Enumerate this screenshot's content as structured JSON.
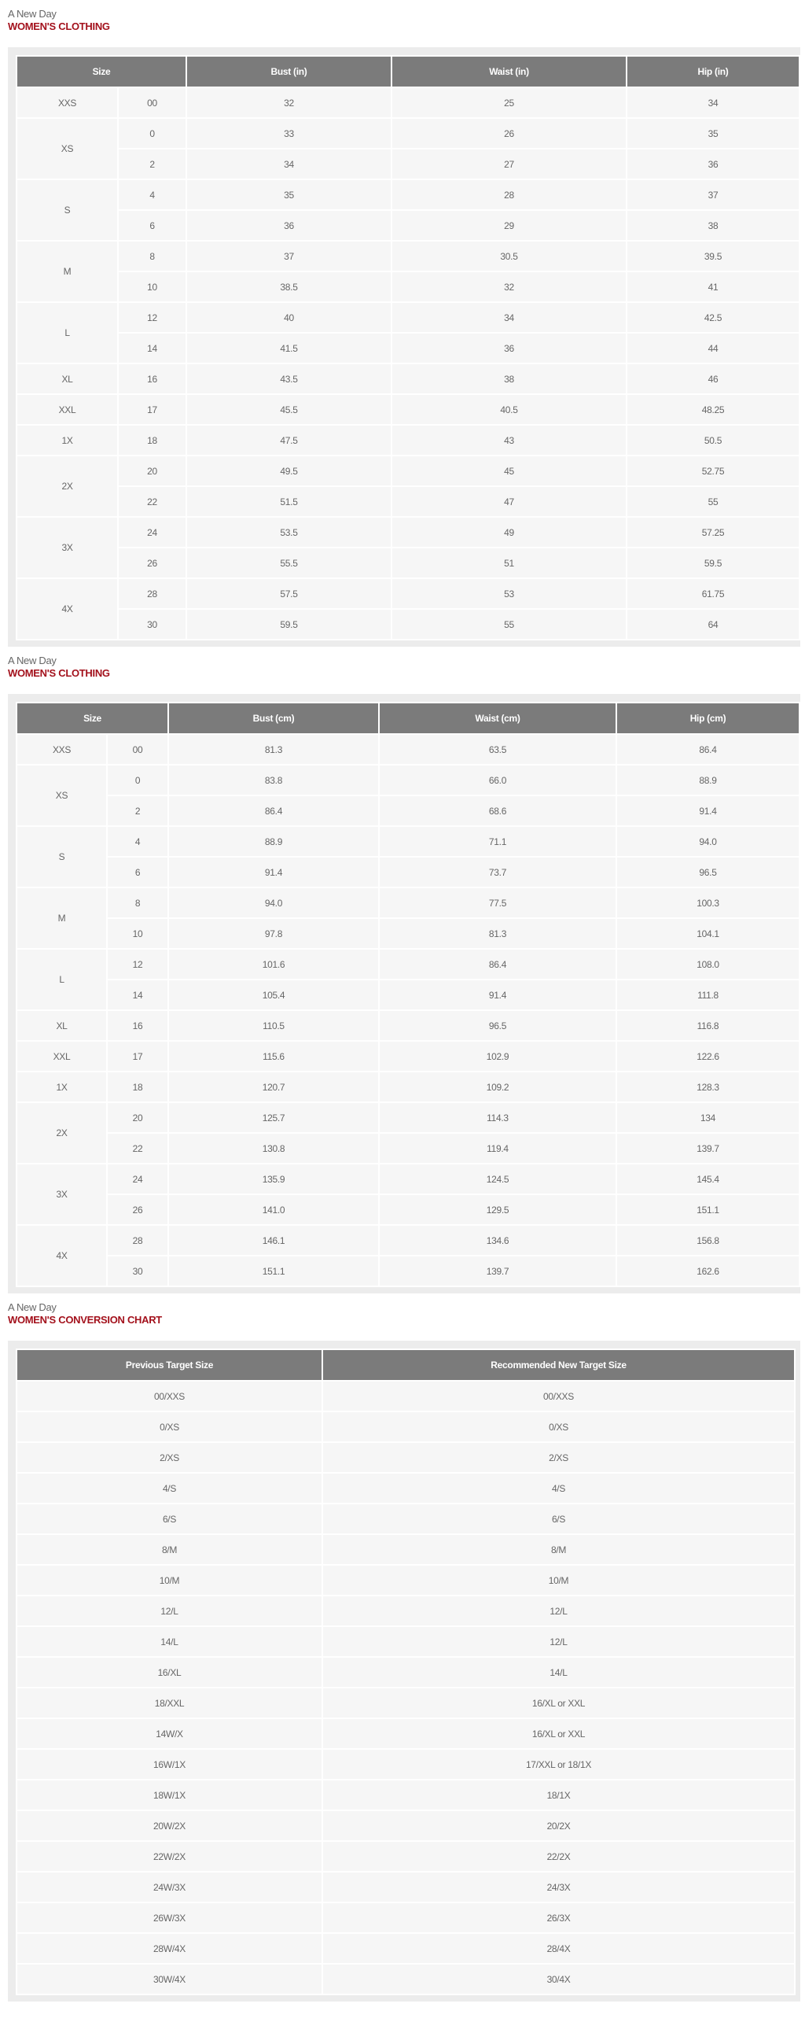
{
  "sections": [
    {
      "brand": "A New Day",
      "heading": "WOMEN'S CLOTHING",
      "headers": [
        "Size",
        "Bust (in)",
        "Waist (in)",
        "Hip (in)"
      ],
      "groups": [
        {
          "size": "XXS",
          "rows": [
            [
              "00",
              "32",
              "25",
              "34"
            ]
          ]
        },
        {
          "size": "XS",
          "rows": [
            [
              "0",
              "33",
              "26",
              "35"
            ],
            [
              "2",
              "34",
              "27",
              "36"
            ]
          ]
        },
        {
          "size": "S",
          "rows": [
            [
              "4",
              "35",
              "28",
              "37"
            ],
            [
              "6",
              "36",
              "29",
              "38"
            ]
          ]
        },
        {
          "size": "M",
          "rows": [
            [
              "8",
              "37",
              "30.5",
              "39.5"
            ],
            [
              "10",
              "38.5",
              "32",
              "41"
            ]
          ]
        },
        {
          "size": "L",
          "rows": [
            [
              "12",
              "40",
              "34",
              "42.5"
            ],
            [
              "14",
              "41.5",
              "36",
              "44"
            ]
          ]
        },
        {
          "size": "XL",
          "rows": [
            [
              "16",
              "43.5",
              "38",
              "46"
            ]
          ]
        },
        {
          "size": "XXL",
          "rows": [
            [
              "17",
              "45.5",
              "40.5",
              "48.25"
            ]
          ]
        },
        {
          "size": "1X",
          "rows": [
            [
              "18",
              "47.5",
              "43",
              "50.5"
            ]
          ]
        },
        {
          "size": "2X",
          "rows": [
            [
              "20",
              "49.5",
              "45",
              "52.75"
            ],
            [
              "22",
              "51.5",
              "47",
              "55"
            ]
          ]
        },
        {
          "size": "3X",
          "rows": [
            [
              "24",
              "53.5",
              "49",
              "57.25"
            ],
            [
              "26",
              "55.5",
              "51",
              "59.5"
            ]
          ]
        },
        {
          "size": "4X",
          "rows": [
            [
              "28",
              "57.5",
              "53",
              "61.75"
            ],
            [
              "30",
              "59.5",
              "55",
              "64"
            ]
          ]
        }
      ]
    },
    {
      "brand": "A New Day",
      "heading": "WOMEN'S CLOTHING",
      "headers": [
        "Size",
        "Bust (cm)",
        "Waist (cm)",
        "Hip (cm)"
      ],
      "groups": [
        {
          "size": "XXS",
          "rows": [
            [
              "00",
              "81.3",
              "63.5",
              "86.4"
            ]
          ]
        },
        {
          "size": "XS",
          "rows": [
            [
              "0",
              "83.8",
              "66.0",
              "88.9"
            ],
            [
              "2",
              "86.4",
              "68.6",
              "91.4"
            ]
          ]
        },
        {
          "size": "S",
          "rows": [
            [
              "4",
              "88.9",
              "71.1",
              "94.0"
            ],
            [
              "6",
              "91.4",
              "73.7",
              "96.5"
            ]
          ]
        },
        {
          "size": "M",
          "rows": [
            [
              "8",
              "94.0",
              "77.5",
              "100.3"
            ],
            [
              "10",
              "97.8",
              "81.3",
              "104.1"
            ]
          ]
        },
        {
          "size": "L",
          "rows": [
            [
              "12",
              "101.6",
              "86.4",
              "108.0"
            ],
            [
              "14",
              "105.4",
              "91.4",
              "111.8"
            ]
          ]
        },
        {
          "size": "XL",
          "rows": [
            [
              "16",
              "110.5",
              "96.5",
              "116.8"
            ]
          ]
        },
        {
          "size": "XXL",
          "rows": [
            [
              "17",
              "115.6",
              "102.9",
              "122.6"
            ]
          ]
        },
        {
          "size": "1X",
          "rows": [
            [
              "18",
              "120.7",
              "109.2",
              "128.3"
            ]
          ]
        },
        {
          "size": "2X",
          "rows": [
            [
              "20",
              "125.7",
              "114.3",
              "134"
            ],
            [
              "22",
              "130.8",
              "119.4",
              "139.7"
            ]
          ]
        },
        {
          "size": "3X",
          "rows": [
            [
              "24",
              "135.9",
              "124.5",
              "145.4"
            ],
            [
              "26",
              "141.0",
              "129.5",
              "151.1"
            ]
          ]
        },
        {
          "size": "4X",
          "rows": [
            [
              "28",
              "146.1",
              "134.6",
              "156.8"
            ],
            [
              "30",
              "151.1",
              "139.7",
              "162.6"
            ]
          ]
        }
      ]
    }
  ],
  "conversion": {
    "brand": "A New Day",
    "heading": "WOMEN'S CONVERSION CHART",
    "headers": [
      "Previous Target Size",
      "Recommended New Target Size"
    ],
    "rows": [
      [
        "00/XXS",
        "00/XXS"
      ],
      [
        "0/XS",
        "0/XS"
      ],
      [
        "2/XS",
        "2/XS"
      ],
      [
        "4/S",
        "4/S"
      ],
      [
        "6/S",
        "6/S"
      ],
      [
        "8/M",
        "8/M"
      ],
      [
        "10/M",
        "10/M"
      ],
      [
        "12/L",
        "12/L"
      ],
      [
        "14/L",
        "12/L"
      ],
      [
        "16/XL",
        "14/L"
      ],
      [
        "18/XXL",
        "16/XL or XXL"
      ],
      [
        "14W/X",
        "16/XL or XXL"
      ],
      [
        "16W/1X",
        "17/XXL or 18/1X"
      ],
      [
        "18W/1X",
        "18/1X"
      ],
      [
        "20W/2X",
        "20/2X"
      ],
      [
        "22W/2X",
        "22/2X"
      ],
      [
        "24W/3X",
        "24/3X"
      ],
      [
        "26W/3X",
        "26/3X"
      ],
      [
        "28W/4X",
        "28/4X"
      ],
      [
        "30W/4X",
        "30/4X"
      ]
    ]
  },
  "colors": {
    "header_bg": "#7b7b7b",
    "cell_bg": "#f6f6f6",
    "panel_bg": "#ececec",
    "heading": "#a3111c",
    "text": "#666666"
  }
}
